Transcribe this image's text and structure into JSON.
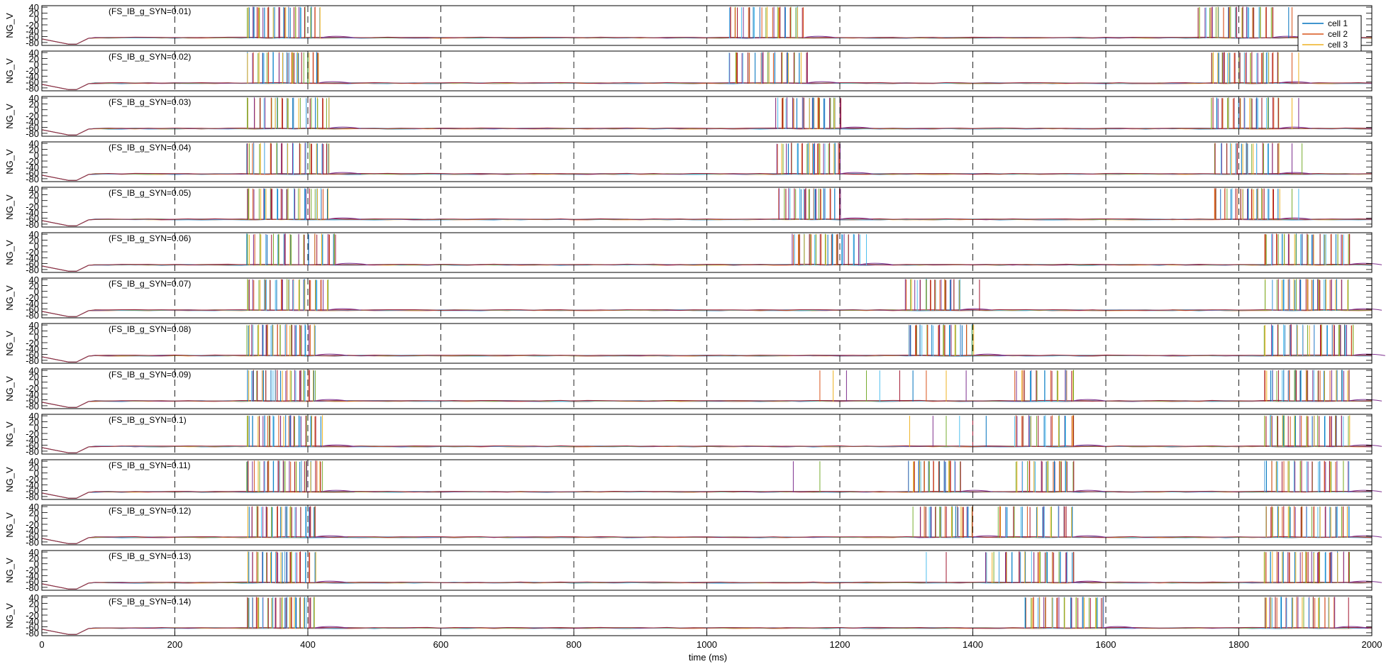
{
  "chart_data": {
    "type": "line",
    "legend": {
      "placement": "top-right",
      "entries": [
        {
          "name": "cell 1",
          "color": "#0072BD"
        },
        {
          "name": "cell 2",
          "color": "#D95319"
        },
        {
          "name": "cell 3",
          "color": "#EDB120"
        }
      ]
    },
    "extra_trace_colors": [
      "#7E2F8E",
      "#77AC30",
      "#4DBEEE",
      "#A2142F"
    ],
    "xlabel": "time (ms)",
    "xlim": [
      0,
      2000
    ],
    "xticks": [
      0,
      200,
      400,
      600,
      800,
      1000,
      1200,
      1400,
      1600,
      1800,
      2000
    ],
    "ylabel": "NG_V",
    "ylim": [
      -90,
      45
    ],
    "yticks": [
      40,
      20,
      0,
      -20,
      -40,
      -60,
      -80
    ],
    "vertical_dashed_lines": [
      200,
      400,
      600,
      800,
      1000,
      1200,
      1400,
      1600,
      1800
    ],
    "panels": [
      {
        "label": "(FS_IB_g_SYN=0.01)",
        "bursts": [
          [
            310,
            420,
            15
          ],
          [
            1035,
            1145,
            13
          ],
          [
            1740,
            1850,
            13
          ]
        ],
        "sparse": [
          [
            1875,
            1880
          ]
        ]
      },
      {
        "label": "(FS_IB_g_SYN=0.02)",
        "bursts": [
          [
            310,
            415,
            15
          ],
          [
            1035,
            1150,
            13
          ],
          [
            1760,
            1860,
            13
          ]
        ],
        "sparse": [
          [
            1880,
            1890
          ]
        ]
      },
      {
        "label": "(FS_IB_g_SYN=0.03)",
        "bursts": [
          [
            310,
            430,
            15
          ],
          [
            1105,
            1200,
            13
          ],
          [
            1760,
            1860,
            13
          ]
        ],
        "sparse": [
          [
            1880,
            1890
          ]
        ]
      },
      {
        "label": "(FS_IB_g_SYN=0.04)",
        "bursts": [
          [
            310,
            430,
            15
          ],
          [
            1105,
            1200,
            13
          ],
          [
            1765,
            1860,
            13
          ]
        ],
        "sparse": [
          [
            1880,
            1895
          ]
        ]
      },
      {
        "label": "(FS_IB_g_SYN=0.05)",
        "bursts": [
          [
            310,
            430,
            15
          ],
          [
            1110,
            1200,
            13
          ],
          [
            1765,
            1860,
            13
          ]
        ],
        "sparse": [
          [
            1880,
            1890
          ]
        ]
      },
      {
        "label": "(FS_IB_g_SYN=0.06)",
        "bursts": [
          [
            310,
            440,
            15
          ],
          [
            1130,
            1230,
            13
          ],
          [
            1840,
            1965,
            15
          ]
        ],
        "sparse": [
          [
            1240
          ]
        ]
      },
      {
        "label": "(FS_IB_g_SYN=0.07)",
        "bursts": [
          [
            310,
            430,
            15
          ],
          [
            1300,
            1380,
            12
          ],
          [
            1840,
            1965,
            15
          ]
        ],
        "sparse": [
          [
            1410
          ]
        ]
      },
      {
        "label": "(FS_IB_g_SYN=0.08)",
        "bursts": [
          [
            310,
            410,
            15
          ],
          [
            1305,
            1400,
            12
          ],
          [
            1840,
            1970,
            15
          ]
        ],
        "sparse": []
      },
      {
        "label": "(FS_IB_g_SYN=0.09)",
        "bursts": [
          [
            310,
            410,
            15
          ],
          [
            1465,
            1550,
            9
          ],
          [
            1840,
            1965,
            15
          ]
        ],
        "sparse": [
          [
            1170,
            1190,
            1210,
            1240,
            1260,
            1290,
            1310,
            1330,
            1360,
            1390
          ]
        ]
      },
      {
        "label": "(FS_IB_g_SYN=0.1)",
        "bursts": [
          [
            310,
            420,
            15
          ],
          [
            1465,
            1550,
            9
          ],
          [
            1840,
            1965,
            15
          ]
        ],
        "sparse": [
          [
            1305,
            1340,
            1360,
            1380,
            1400,
            1420
          ]
        ]
      },
      {
        "label": "(FS_IB_g_SYN=0.11)",
        "bursts": [
          [
            310,
            420,
            15
          ],
          [
            1305,
            1380,
            11
          ],
          [
            1465,
            1550,
            10
          ],
          [
            1840,
            1965,
            15
          ]
        ],
        "sparse": [
          [
            1130,
            1170
          ]
        ]
      },
      {
        "label": "(FS_IB_g_SYN=0.12)",
        "bursts": [
          [
            310,
            410,
            15
          ],
          [
            1320,
            1400,
            11
          ],
          [
            1440,
            1550,
            11
          ],
          [
            1840,
            1965,
            15
          ]
        ],
        "sparse": [
          [
            1310
          ]
        ]
      },
      {
        "label": "(FS_IB_g_SYN=0.13)",
        "bursts": [
          [
            310,
            410,
            15
          ],
          [
            1420,
            1550,
            14
          ],
          [
            1840,
            1965,
            15
          ]
        ],
        "sparse": [
          [
            1330,
            1360
          ]
        ]
      },
      {
        "label": "(FS_IB_g_SYN=0.14)",
        "bursts": [
          [
            310,
            410,
            15
          ],
          [
            1480,
            1595,
            13
          ],
          [
            1840,
            1945,
            14
          ]
        ],
        "sparse": [
          [
            1965
          ]
        ]
      }
    ]
  }
}
